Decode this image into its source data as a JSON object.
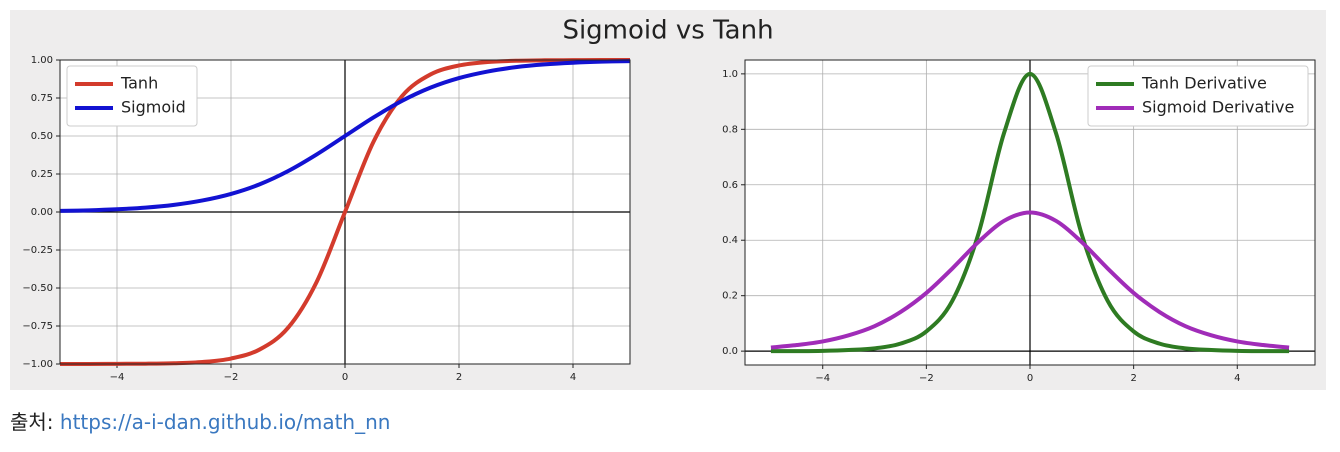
{
  "figure": {
    "title": "Sigmoid vs Tanh"
  },
  "chart_data": [
    {
      "type": "line",
      "legend": "upper left",
      "grid": true,
      "zero_lines": true,
      "x": [
        -5,
        -4.5,
        -4,
        -3.5,
        -3,
        -2.5,
        -2,
        -1.5,
        -1,
        -0.5,
        0,
        0.5,
        1,
        1.5,
        2,
        2.5,
        3,
        3.5,
        4,
        4.5,
        5
      ],
      "series": [
        {
          "name": "Tanh",
          "color": "#d33b2c",
          "values": [
            -1.0,
            -1.0,
            -0.999,
            -0.998,
            -0.995,
            -0.987,
            -0.964,
            -0.905,
            -0.762,
            -0.462,
            0,
            0.462,
            0.762,
            0.905,
            0.964,
            0.987,
            0.995,
            0.998,
            0.999,
            1.0,
            1.0
          ]
        },
        {
          "name": "Sigmoid",
          "color": "#1212d2",
          "values": [
            0.007,
            0.011,
            0.018,
            0.029,
            0.047,
            0.076,
            0.119,
            0.182,
            0.269,
            0.378,
            0.5,
            0.622,
            0.731,
            0.818,
            0.881,
            0.924,
            0.953,
            0.971,
            0.982,
            0.989,
            0.993
          ]
        }
      ],
      "xlim": [
        -5,
        5
      ],
      "xticks": [
        {
          "value": -4,
          "label": "−4"
        },
        {
          "value": -2,
          "label": "−2"
        },
        0,
        2,
        4
      ],
      "ylim": [
        -1,
        1
      ],
      "yticks": [
        {
          "value": -1,
          "label": "−1.00"
        },
        {
          "value": -0.75,
          "label": "−0.75"
        },
        {
          "value": -0.5,
          "label": "−0.50"
        },
        {
          "value": -0.25,
          "label": "−0.25"
        },
        {
          "value": 0,
          "label": "0.00"
        },
        0.25,
        {
          "value": 0.5,
          "label": "0.50"
        },
        0.75,
        {
          "value": 1,
          "label": "1.00"
        }
      ]
    },
    {
      "type": "line",
      "legend": "upper right",
      "grid": true,
      "zero_lines": true,
      "x": [
        -5,
        -4.5,
        -4,
        -3.5,
        -3,
        -2.5,
        -2,
        -1.5,
        -1,
        -0.5,
        0,
        0.5,
        1,
        1.5,
        2,
        2.5,
        3,
        3.5,
        4,
        4.5,
        5
      ],
      "series": [
        {
          "name": "Tanh Derivative",
          "color": "#2e7b22",
          "values": [
            0.0,
            0.0,
            0.001,
            0.004,
            0.01,
            0.027,
            0.071,
            0.181,
            0.42,
            0.787,
            1,
            0.787,
            0.42,
            0.181,
            0.071,
            0.027,
            0.01,
            0.004,
            0.001,
            0.0,
            0.0
          ]
        },
        {
          "name": "Sigmoid Derivative",
          "color": "#a02cb8",
          "values": [
            0.013,
            0.022,
            0.035,
            0.057,
            0.09,
            0.141,
            0.21,
            0.298,
            0.393,
            0.47,
            0.5,
            0.47,
            0.393,
            0.298,
            0.21,
            0.141,
            0.09,
            0.057,
            0.035,
            0.022,
            0.013
          ]
        }
      ],
      "xlim": [
        -5.5,
        5.5
      ],
      "xticks": [
        {
          "value": -4,
          "label": "−4"
        },
        {
          "value": -2,
          "label": "−2"
        },
        0,
        2,
        4
      ],
      "ylim": [
        -0.05,
        1.05
      ],
      "yticks": [
        {
          "value": 0,
          "label": "0.0"
        },
        0.2,
        0.4,
        0.6,
        0.8,
        {
          "value": 1,
          "label": "1.0"
        }
      ]
    }
  ],
  "caption": {
    "label": "출처:",
    "link": "https://a-i-dan.github.io/math_nn"
  }
}
